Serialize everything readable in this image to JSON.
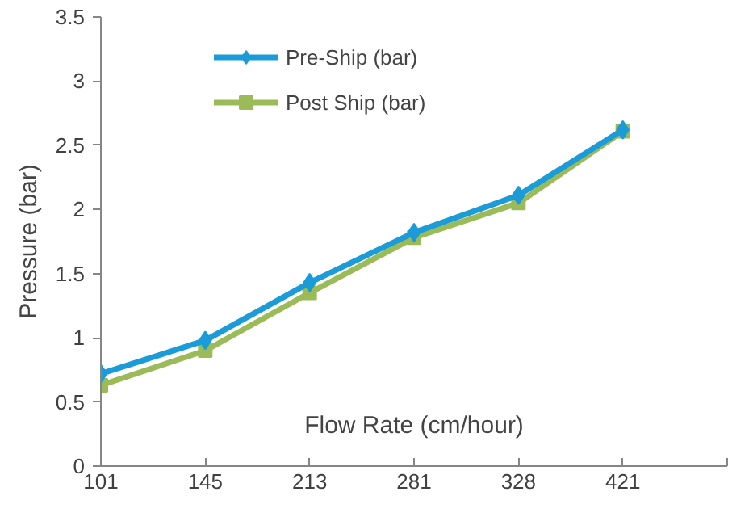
{
  "chart_data": {
    "type": "line",
    "xlabel": "Flow Rate (cm/hour)",
    "ylabel": "Pressure (bar)",
    "categories": [
      "101",
      "145",
      "213",
      "281",
      "328",
      "421",
      null
    ],
    "ylim": [
      0,
      3.5
    ],
    "yticks": [
      0,
      0.5,
      1,
      1.5,
      2,
      2.5,
      3,
      3.5
    ],
    "grid": false,
    "legend": "top",
    "line_style": "solid",
    "series": [
      {
        "name": "Pre-Ship (bar)",
        "color": "#1b9bd7",
        "marker": "diamond",
        "values": [
          0.72,
          0.98,
          1.43,
          1.82,
          2.11,
          2.62,
          null
        ]
      },
      {
        "name": "Post Ship (bar)",
        "color": "#9bbb59",
        "marker": "square",
        "values": [
          0.63,
          0.9,
          1.35,
          1.78,
          2.05,
          2.61,
          null
        ]
      }
    ]
  }
}
